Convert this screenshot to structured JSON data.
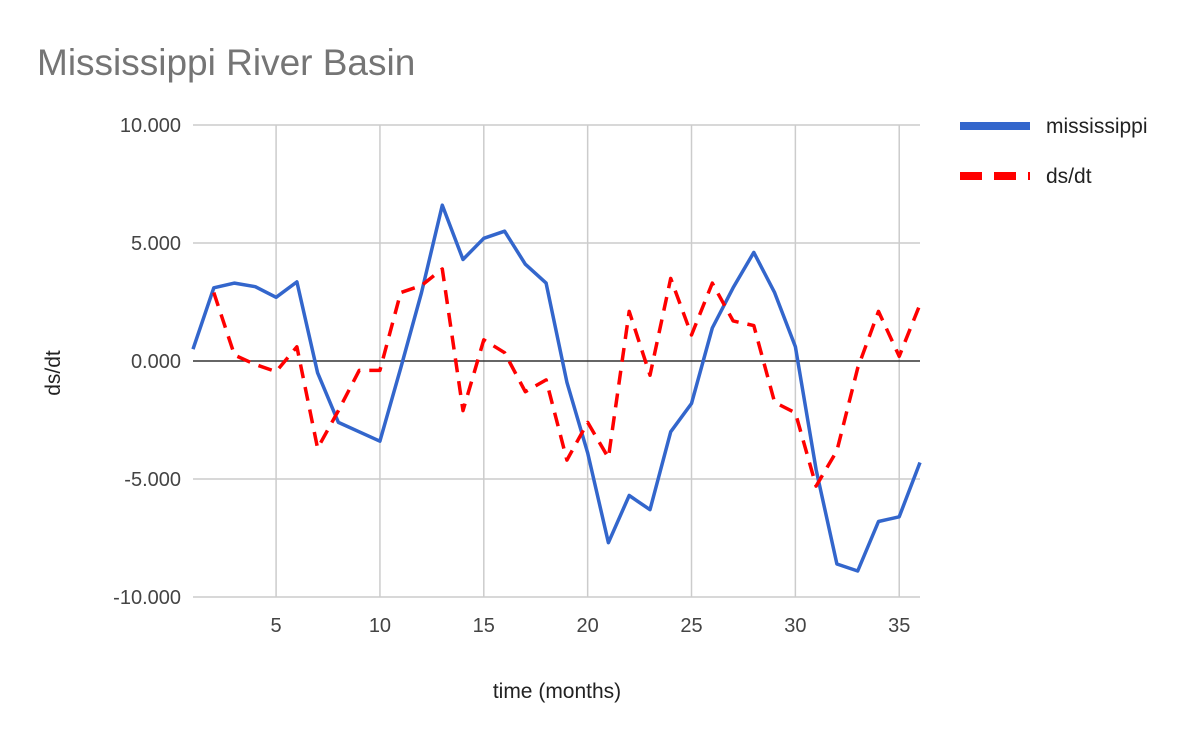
{
  "chart_data": {
    "type": "line",
    "title": "Mississippi River Basin",
    "xlabel": "time (months)",
    "ylabel": "ds/dt",
    "xlim": [
      1,
      36
    ],
    "ylim": [
      -10,
      10
    ],
    "x_ticks": [
      5,
      10,
      15,
      20,
      25,
      30,
      35
    ],
    "x_tick_labels": [
      "5",
      "10",
      "15",
      "20",
      "25",
      "30",
      "35"
    ],
    "y_ticks": [
      -10,
      -5,
      0,
      5,
      10
    ],
    "y_tick_labels": [
      "-10.000",
      "-5.000",
      "0.000",
      "5.000",
      "10.000"
    ],
    "grid": true,
    "legend_position": "right",
    "x": [
      1,
      2,
      3,
      4,
      5,
      6,
      7,
      8,
      9,
      10,
      11,
      12,
      13,
      14,
      15,
      16,
      17,
      18,
      19,
      20,
      21,
      22,
      23,
      24,
      25,
      26,
      27,
      28,
      29,
      30,
      31,
      32,
      33,
      34,
      35,
      36
    ],
    "series": [
      {
        "name": "mississippi",
        "color": "#3366cc",
        "style": "solid",
        "values": [
          0.5,
          3.1,
          3.3,
          3.15,
          2.7,
          3.35,
          -0.5,
          -2.6,
          -3.0,
          -3.4,
          -0.3,
          2.9,
          6.6,
          4.3,
          5.2,
          5.5,
          4.1,
          3.3,
          -0.9,
          -3.9,
          -7.7,
          -5.7,
          -6.3,
          -3.0,
          -1.8,
          1.4,
          3.1,
          4.6,
          2.9,
          0.6,
          -4.6,
          -8.6,
          -8.9,
          -6.8,
          -6.6,
          -4.3
        ]
      },
      {
        "name": "ds/dt",
        "color": "#ff0000",
        "style": "dashed",
        "values": [
          null,
          2.9,
          0.25,
          -0.15,
          -0.45,
          0.6,
          -3.7,
          -2.1,
          -0.4,
          -0.4,
          2.9,
          3.2,
          3.9,
          -2.1,
          0.9,
          0.35,
          -1.3,
          -0.8,
          -4.2,
          -2.6,
          -4.1,
          2.1,
          -0.6,
          3.5,
          1.1,
          3.3,
          1.7,
          1.5,
          -1.75,
          -2.2,
          -5.3,
          -3.8,
          -0.3,
          2.1,
          0.2,
          2.4
        ]
      }
    ]
  }
}
